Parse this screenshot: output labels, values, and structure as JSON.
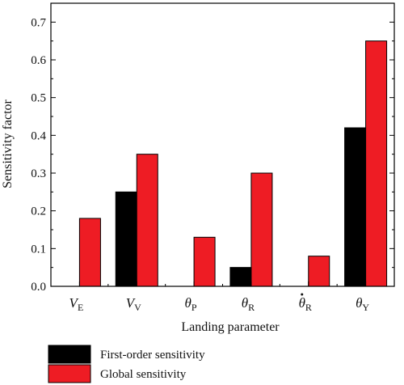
{
  "chart_data": {
    "type": "bar",
    "title": "",
    "xlabel": "Landing parameter",
    "ylabel": "Sensitivity factor",
    "ylim": [
      0,
      0.75
    ],
    "yticks": [
      0.0,
      0.1,
      0.2,
      0.3,
      0.4,
      0.5,
      0.6,
      0.7
    ],
    "ytick_labels": [
      "0.0",
      "0.1",
      "0.2",
      "0.3",
      "0.4",
      "0.5",
      "0.6",
      "0.7"
    ],
    "grid": false,
    "legend_position": "bottom-left",
    "categories": [
      {
        "symbol": "V",
        "sub": "E",
        "dot": false
      },
      {
        "symbol": "V",
        "sub": "V",
        "dot": false
      },
      {
        "symbol": "θ",
        "sub": "P",
        "dot": false
      },
      {
        "symbol": "θ",
        "sub": "R",
        "dot": false
      },
      {
        "symbol": "θ",
        "sub": "R",
        "dot": true
      },
      {
        "symbol": "θ",
        "sub": "Y",
        "dot": false
      }
    ],
    "series": [
      {
        "name": "First-order sensitivity",
        "color": "#000000",
        "values": [
          0.0,
          0.25,
          0.0,
          0.05,
          0.0,
          0.42
        ]
      },
      {
        "name": "Global sensitivity",
        "color": "#ee1c24",
        "values": [
          0.18,
          0.35,
          0.13,
          0.3,
          0.08,
          0.65
        ]
      }
    ]
  }
}
